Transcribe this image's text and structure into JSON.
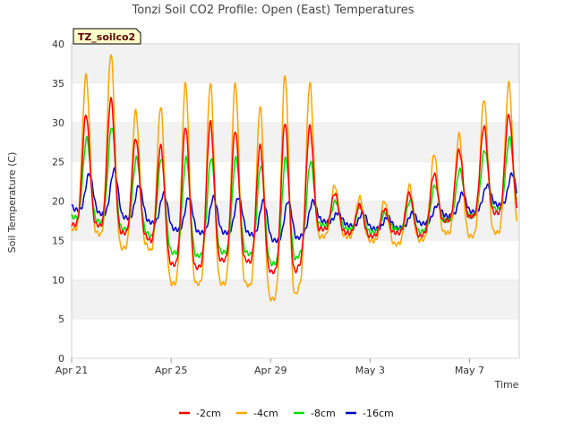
{
  "chart_data": {
    "type": "line",
    "title": "Tonzi Soil CO2 Profile: Open (East) Temperatures",
    "xlabel": "Time",
    "ylabel": "Soil Temperature (C)",
    "badge": "TZ_soilco2",
    "ylim": [
      0,
      40
    ],
    "yticks": [
      0,
      5,
      10,
      15,
      20,
      25,
      30,
      35,
      40
    ],
    "xlim": [
      "2024-04-21",
      "2024-05-09"
    ],
    "xticks": [
      {
        "date": "2024-04-21",
        "label": "Apr 21"
      },
      {
        "date": "2024-04-25",
        "label": "Apr 25"
      },
      {
        "date": "2024-04-29",
        "label": "Apr 29"
      },
      {
        "date": "2024-05-03",
        "label": "May 3"
      },
      {
        "date": "2024-05-07",
        "label": "May 7"
      }
    ],
    "grid": "alternating horizontal bands",
    "legend_position": "bottom",
    "start_date": "2024-04-21",
    "series": [
      {
        "name": "-2cm",
        "color": "#ff0000",
        "daily_max": [
          31,
          33,
          28,
          27,
          29.5,
          30,
          29,
          27,
          30,
          29.5,
          21,
          19.5,
          19,
          21,
          23.5,
          26.5,
          29.5,
          31
        ],
        "daily_min": [
          17,
          17,
          16,
          15.5,
          12,
          11.5,
          12.5,
          12.5,
          11,
          11,
          16.5,
          16,
          15.5,
          16,
          15.5,
          17.5,
          18,
          18.5
        ]
      },
      {
        "name": "-4cm",
        "color": "#ffa500",
        "daily_max": [
          36,
          38.8,
          31.5,
          32,
          35,
          35,
          35,
          32,
          36,
          35,
          22,
          20.5,
          20,
          22,
          26,
          28.5,
          33,
          35
        ],
        "daily_min": [
          16.5,
          16,
          14,
          14.5,
          9.5,
          9.5,
          9.5,
          9.5,
          7.5,
          8,
          15.5,
          15.5,
          15,
          14.5,
          15,
          16,
          15.5,
          16
        ]
      },
      {
        "name": "-8cm",
        "color": "#00e000",
        "daily_max": [
          28,
          29.5,
          25.5,
          25.5,
          25.5,
          25.5,
          25.5,
          24.5,
          25.5,
          25,
          20,
          19.5,
          18.5,
          20,
          22,
          24,
          26.5,
          28
        ],
        "daily_min": [
          18,
          17.5,
          16.5,
          16,
          13.5,
          13,
          13.5,
          13.5,
          12,
          12.5,
          17,
          16.5,
          16,
          16.5,
          16,
          17.5,
          18,
          19
        ]
      },
      {
        "name": "-16cm",
        "color": "#0000cc",
        "daily_max": [
          23.5,
          24,
          22,
          21,
          20.5,
          20.5,
          20.5,
          20,
          20,
          20,
          18.5,
          18.5,
          18,
          18.5,
          19.5,
          21,
          22,
          23.5
        ],
        "daily_min": [
          19,
          18.5,
          18,
          17.5,
          16.5,
          16,
          16,
          16,
          15,
          15,
          17.5,
          17,
          16.5,
          16.5,
          17,
          18,
          18.5,
          19.5
        ]
      }
    ]
  }
}
